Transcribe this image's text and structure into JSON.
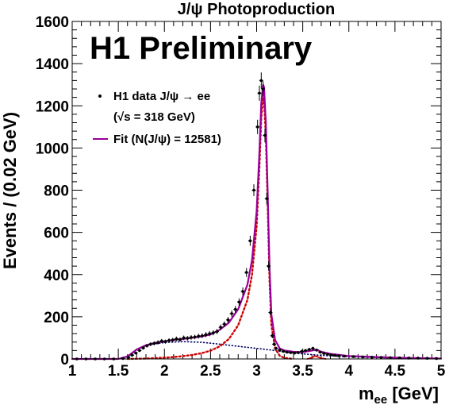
{
  "chart_data": {
    "type": "scatter",
    "title": "J/ψ Photoproduction",
    "annotation": "H1 Preliminary",
    "xlabel": "m",
    "xlabel_sub": "ee",
    "xlabel_unit": " [GeV]",
    "ylabel": "Events / (0.02 GeV)",
    "xlim": [
      1,
      5
    ],
    "ylim": [
      0,
      1600
    ],
    "xticks": [
      "1",
      "1.5",
      "2",
      "2.5",
      "3",
      "3.5",
      "4",
      "4.5",
      "5"
    ],
    "yticks": [
      "0",
      "200",
      "400",
      "600",
      "800",
      "1000",
      "1200",
      "1400",
      "1600"
    ],
    "legend": {
      "data_label": "H1 data J/ψ → ee",
      "data_label2": "(√s = 318 GeV)",
      "fit_label": "Fit (N(J/ψ) = 12581)"
    },
    "colors": {
      "fit": "#990099",
      "signal": "#cc0000",
      "background": "#000066",
      "data": "#000000"
    },
    "series": [
      {
        "name": "H1 data J/ψ → ee",
        "style": "points",
        "x": [
          1.05,
          1.15,
          1.25,
          1.35,
          1.45,
          1.55,
          1.61,
          1.65,
          1.69,
          1.73,
          1.77,
          1.81,
          1.85,
          1.89,
          1.93,
          1.97,
          2.01,
          2.05,
          2.09,
          2.13,
          2.17,
          2.21,
          2.25,
          2.29,
          2.33,
          2.37,
          2.41,
          2.45,
          2.49,
          2.53,
          2.57,
          2.61,
          2.65,
          2.69,
          2.73,
          2.77,
          2.81,
          2.85,
          2.89,
          2.93,
          2.97,
          3.01,
          3.03,
          3.05,
          3.07,
          3.09,
          3.11,
          3.13,
          3.15,
          3.17,
          3.19,
          3.21,
          3.25,
          3.29,
          3.33,
          3.37,
          3.41,
          3.45,
          3.49,
          3.53,
          3.57,
          3.61,
          3.65,
          3.69,
          3.73,
          3.77,
          3.81,
          3.85,
          3.89,
          3.95,
          4.05,
          4.15,
          4.25,
          4.35,
          4.45,
          4.55,
          4.65,
          4.75,
          4.85,
          4.95
        ],
        "y": [
          0,
          0,
          0,
          0,
          0,
          2,
          8,
          18,
          28,
          40,
          52,
          62,
          70,
          74,
          78,
          85,
          82,
          88,
          90,
          95,
          92,
          100,
          98,
          102,
          104,
          108,
          110,
          115,
          120,
          124,
          130,
          150,
          165,
          185,
          215,
          235,
          270,
          320,
          410,
          560,
          800,
          1100,
          1260,
          1320,
          1280,
          1060,
          760,
          440,
          220,
          110,
          70,
          50,
          42,
          36,
          32,
          30,
          28,
          30,
          36,
          40,
          45,
          50,
          42,
          32,
          26,
          22,
          19,
          17,
          15,
          13,
          11,
          9,
          8,
          7,
          6,
          5,
          4,
          4,
          3,
          2
        ],
        "errors": [
          0,
          0,
          0,
          0,
          0,
          2,
          4,
          5,
          6,
          7,
          8,
          8,
          9,
          9,
          10,
          10,
          10,
          10,
          10,
          11,
          10,
          11,
          11,
          11,
          11,
          11,
          11,
          12,
          12,
          12,
          12,
          13,
          13,
          14,
          15,
          16,
          17,
          19,
          21,
          24,
          28,
          34,
          36,
          38,
          37,
          33,
          28,
          21,
          15,
          11,
          9,
          8,
          7,
          6,
          6,
          6,
          6,
          6,
          6,
          7,
          7,
          8,
          7,
          6,
          5,
          5,
          5,
          4,
          4,
          4,
          4,
          3,
          3,
          3,
          3,
          2,
          2,
          2,
          2,
          2
        ]
      },
      {
        "name": "Fit (N(J/ψ) = 12581)",
        "style": "solid",
        "x": [
          1.0,
          1.5,
          1.6,
          1.7,
          1.8,
          1.9,
          2.0,
          2.1,
          2.2,
          2.3,
          2.4,
          2.5,
          2.6,
          2.7,
          2.8,
          2.9,
          2.95,
          3.0,
          3.03,
          3.05,
          3.07,
          3.08,
          3.1,
          3.12,
          3.14,
          3.16,
          3.2,
          3.25,
          3.3,
          3.4,
          3.5,
          3.6,
          3.65,
          3.7,
          3.8,
          4.0,
          4.5,
          5.0
        ],
        "y": [
          0,
          0,
          12,
          45,
          65,
          76,
          84,
          90,
          95,
          100,
          106,
          116,
          138,
          172,
          236,
          352,
          470,
          700,
          980,
          1210,
          1300,
          1290,
          1120,
          780,
          430,
          210,
          90,
          50,
          40,
          34,
          32,
          40,
          44,
          34,
          24,
          14,
          6,
          2
        ]
      },
      {
        "style": "dotted",
        "x": [
          1.6,
          1.7,
          1.8,
          1.9,
          2.0,
          2.1,
          2.2,
          2.3,
          2.4,
          2.5,
          2.6,
          2.7,
          2.8,
          2.9,
          2.95,
          3.0,
          3.03,
          3.05,
          3.07,
          3.08,
          3.1,
          3.12,
          3.14,
          3.16,
          3.2,
          3.25,
          3.3,
          3.4
        ],
        "y": [
          0,
          1,
          2,
          4,
          6,
          9,
          13,
          19,
          27,
          39,
          60,
          95,
          160,
          280,
          400,
          630,
          910,
          1140,
          1240,
          1230,
          1060,
          720,
          370,
          160,
          50,
          15,
          5,
          0
        ]
      },
      {
        "style": "dotted",
        "x": [
          1.6,
          1.7,
          1.8,
          1.9,
          2.0,
          2.2,
          2.4,
          2.6,
          2.8,
          3.0,
          3.2,
          3.3,
          3.5,
          3.7,
          4.0,
          4.5,
          5.0
        ],
        "y": [
          12,
          44,
          62,
          72,
          78,
          82,
          79,
          70,
          60,
          50,
          40,
          33,
          24,
          17,
          10,
          4,
          1
        ]
      },
      {
        "style": "solid",
        "x": [
          3.55,
          3.6,
          3.63,
          3.66,
          3.7,
          3.75
        ],
        "y": [
          0,
          6,
          14,
          10,
          3,
          0
        ]
      }
    ]
  }
}
